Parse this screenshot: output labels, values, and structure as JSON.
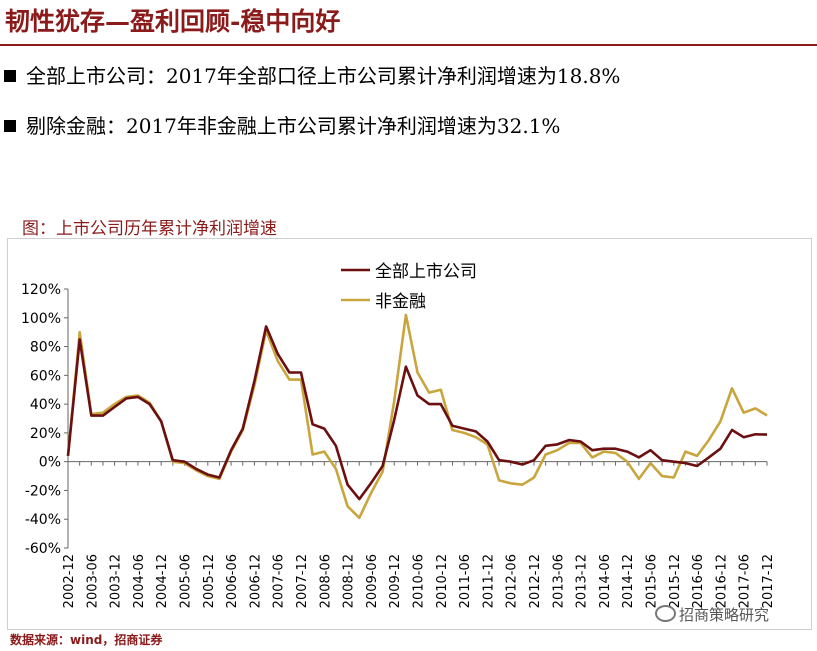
{
  "slide": {
    "title": "韧性犹存—盈利回顾-稳中向好",
    "bullets": [
      "全部上市公司：2017年全部口径上市公司累计净利润增速为18.8%",
      "剔除金融：2017年非金融上市公司累计净利润增速为32.1%"
    ],
    "chart_title": "图：上市公司历年累计净利润增速",
    "source": "数据来源：wind，招商证券",
    "watermark": "招商策略研究"
  },
  "colors": {
    "brand": "#8b1a1a",
    "series_all": "#6b0f10",
    "series_nonfin": "#c9a53e"
  },
  "chart_data": {
    "type": "line",
    "title": "图：上市公司历年累计净利润增速",
    "x": [
      "2002-12",
      "2003-03",
      "2003-06",
      "2003-09",
      "2003-12",
      "2004-03",
      "2004-06",
      "2004-09",
      "2004-12",
      "2005-03",
      "2005-06",
      "2005-09",
      "2005-12",
      "2006-03",
      "2006-06",
      "2006-09",
      "2006-12",
      "2007-03",
      "2007-06",
      "2007-09",
      "2007-12",
      "2008-03",
      "2008-06",
      "2008-09",
      "2008-12",
      "2009-03",
      "2009-06",
      "2009-09",
      "2009-12",
      "2010-03",
      "2010-06",
      "2010-09",
      "2010-12",
      "2011-03",
      "2011-06",
      "2011-09",
      "2011-12",
      "2012-03",
      "2012-06",
      "2012-09",
      "2012-12",
      "2013-03",
      "2013-06",
      "2013-09",
      "2013-12",
      "2014-03",
      "2014-06",
      "2014-09",
      "2014-12",
      "2015-03",
      "2015-06",
      "2015-09",
      "2015-12",
      "2016-03",
      "2016-06",
      "2016-09",
      "2016-12",
      "2017-03",
      "2017-06",
      "2017-09",
      "2017-12"
    ],
    "tick_labels": [
      "2002-12",
      "2003-06",
      "2003-12",
      "2004-06",
      "2004-12",
      "2005-06",
      "2005-12",
      "2006-06",
      "2006-12",
      "2007-06",
      "2007-12",
      "2008-06",
      "2008-12",
      "2009-06",
      "2009-12",
      "2010-06",
      "2010-12",
      "2011-06",
      "2011-12",
      "2012-06",
      "2012-12",
      "2013-06",
      "2013-12",
      "2014-06",
      "2014-12",
      "2015-06",
      "2015-12",
      "2016-06",
      "2016-12",
      "2017-06",
      "2017-12"
    ],
    "series": [
      {
        "name": "全部上市公司",
        "values": [
          4,
          85,
          32,
          32,
          38,
          44,
          45,
          40,
          28,
          1,
          0,
          -5,
          -9,
          -11,
          8,
          23,
          56,
          94,
          75,
          62,
          62,
          26,
          23,
          11,
          -16,
          -26,
          -15,
          -3,
          29,
          66,
          46,
          40,
          40,
          25,
          23,
          21,
          14,
          1,
          0,
          -2,
          1,
          11,
          12,
          15,
          14,
          8,
          9,
          9,
          7,
          3,
          8,
          1,
          0,
          -1,
          -3,
          3,
          9,
          22,
          17,
          19,
          18.8
        ]
      },
      {
        "name": "非金融",
        "values": [
          4,
          90,
          33,
          34,
          40,
          45,
          46,
          41,
          28,
          0,
          -1,
          -6,
          -10,
          -12,
          7,
          22,
          53,
          91,
          70,
          57,
          57,
          5,
          7,
          -5,
          -31,
          -39,
          -22,
          -7,
          42,
          102,
          62,
          48,
          50,
          22,
          20,
          17,
          12,
          -13,
          -15,
          -16,
          -11,
          5,
          8,
          13,
          13,
          3,
          7,
          6,
          0,
          -12,
          -1,
          -10,
          -11,
          7,
          4,
          15,
          28,
          51,
          34,
          37,
          32.1
        ]
      }
    ],
    "ylim": [
      -60,
      120
    ],
    "yticks": [
      "120%",
      "100%",
      "80%",
      "60%",
      "40%",
      "20%",
      "0%",
      "-20%",
      "-40%",
      "-60%"
    ],
    "grid": false,
    "legend": "top-center"
  }
}
